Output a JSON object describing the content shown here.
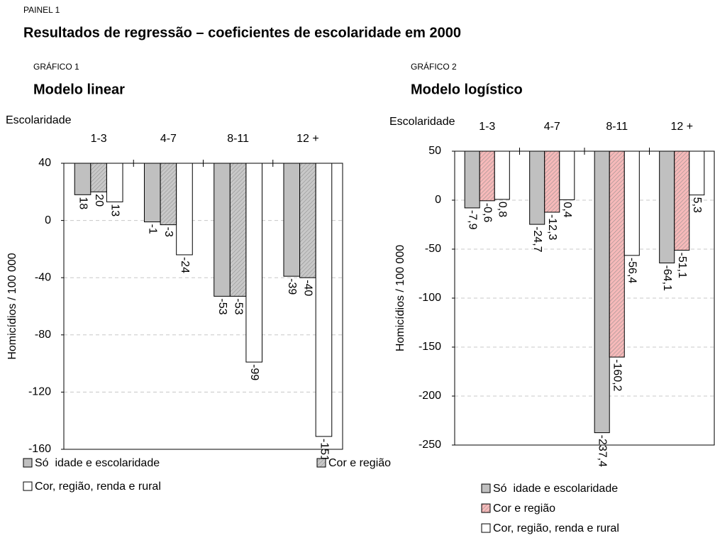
{
  "header": {
    "label": "PAINEL 1",
    "title": "Resultados de regressão – coeficientes de escolaridade em 2000"
  },
  "chart_data": [
    {
      "type": "bar",
      "label": "GRÁFICO 1",
      "title": "Modelo linear",
      "x_label": "Escolaridade",
      "y_label": "Homicídios / 100 000",
      "categories": [
        "1-3",
        "4-7",
        "8-11",
        "12 +"
      ],
      "series": [
        {
          "name": "Só  idade e escolaridade",
          "color": "#c0c0c0",
          "label_color": "#000000",
          "values": [
            18,
            -1,
            -53,
            -39
          ]
        },
        {
          "name": "Cor e região",
          "color": "#c8c8c8",
          "hatch": true,
          "label_color": "#000000",
          "values": [
            20,
            -3,
            -53,
            -40
          ]
        },
        {
          "name": "Cor, região, renda e rural",
          "color": "#ffffff",
          "label_color": "#000000",
          "values": [
            13,
            -24,
            -99,
            -151
          ]
        }
      ],
      "ylim": [
        -160,
        40
      ],
      "yticks": [
        -160,
        -120,
        -80,
        -40,
        0,
        40
      ],
      "grid": true
    },
    {
      "type": "bar",
      "label": "GRÁFICO  2",
      "title": "Modelo logístico",
      "x_label": "Escolaridade",
      "y_label": "Homicídios / 100 000",
      "categories": [
        "1-3",
        "4-7",
        "8-11",
        "12 +"
      ],
      "series": [
        {
          "name": "Só  idade e escolaridade",
          "color": "#c0c0c0",
          "label_color": "#9a9a9a",
          "values": [
            -7.9,
            -24.7,
            -237.4,
            -64.1
          ],
          "value_labels": [
            "-7,9",
            "-24,7",
            "-237,4",
            "-64,1"
          ]
        },
        {
          "name": "Cor e região",
          "color": "#f6b9b9",
          "hatch": true,
          "label_color": "#ff0000",
          "values": [
            -0.6,
            -12.3,
            -160.2,
            -51.1
          ],
          "value_labels": [
            "-0,6",
            "-12,3",
            "-160,2",
            "-51,1"
          ]
        },
        {
          "name": "Cor, região, renda e rural",
          "color": "#ffffff",
          "label_color": "#000000",
          "values": [
            0.8,
            0.4,
            -56.4,
            5.3
          ],
          "value_labels": [
            "0,8",
            "0,4",
            "-56,4",
            "5,3"
          ]
        }
      ],
      "ylim": [
        -250,
        50
      ],
      "yticks": [
        -250,
        -200,
        -150,
        -100,
        -50,
        0,
        50
      ],
      "grid": true
    }
  ]
}
